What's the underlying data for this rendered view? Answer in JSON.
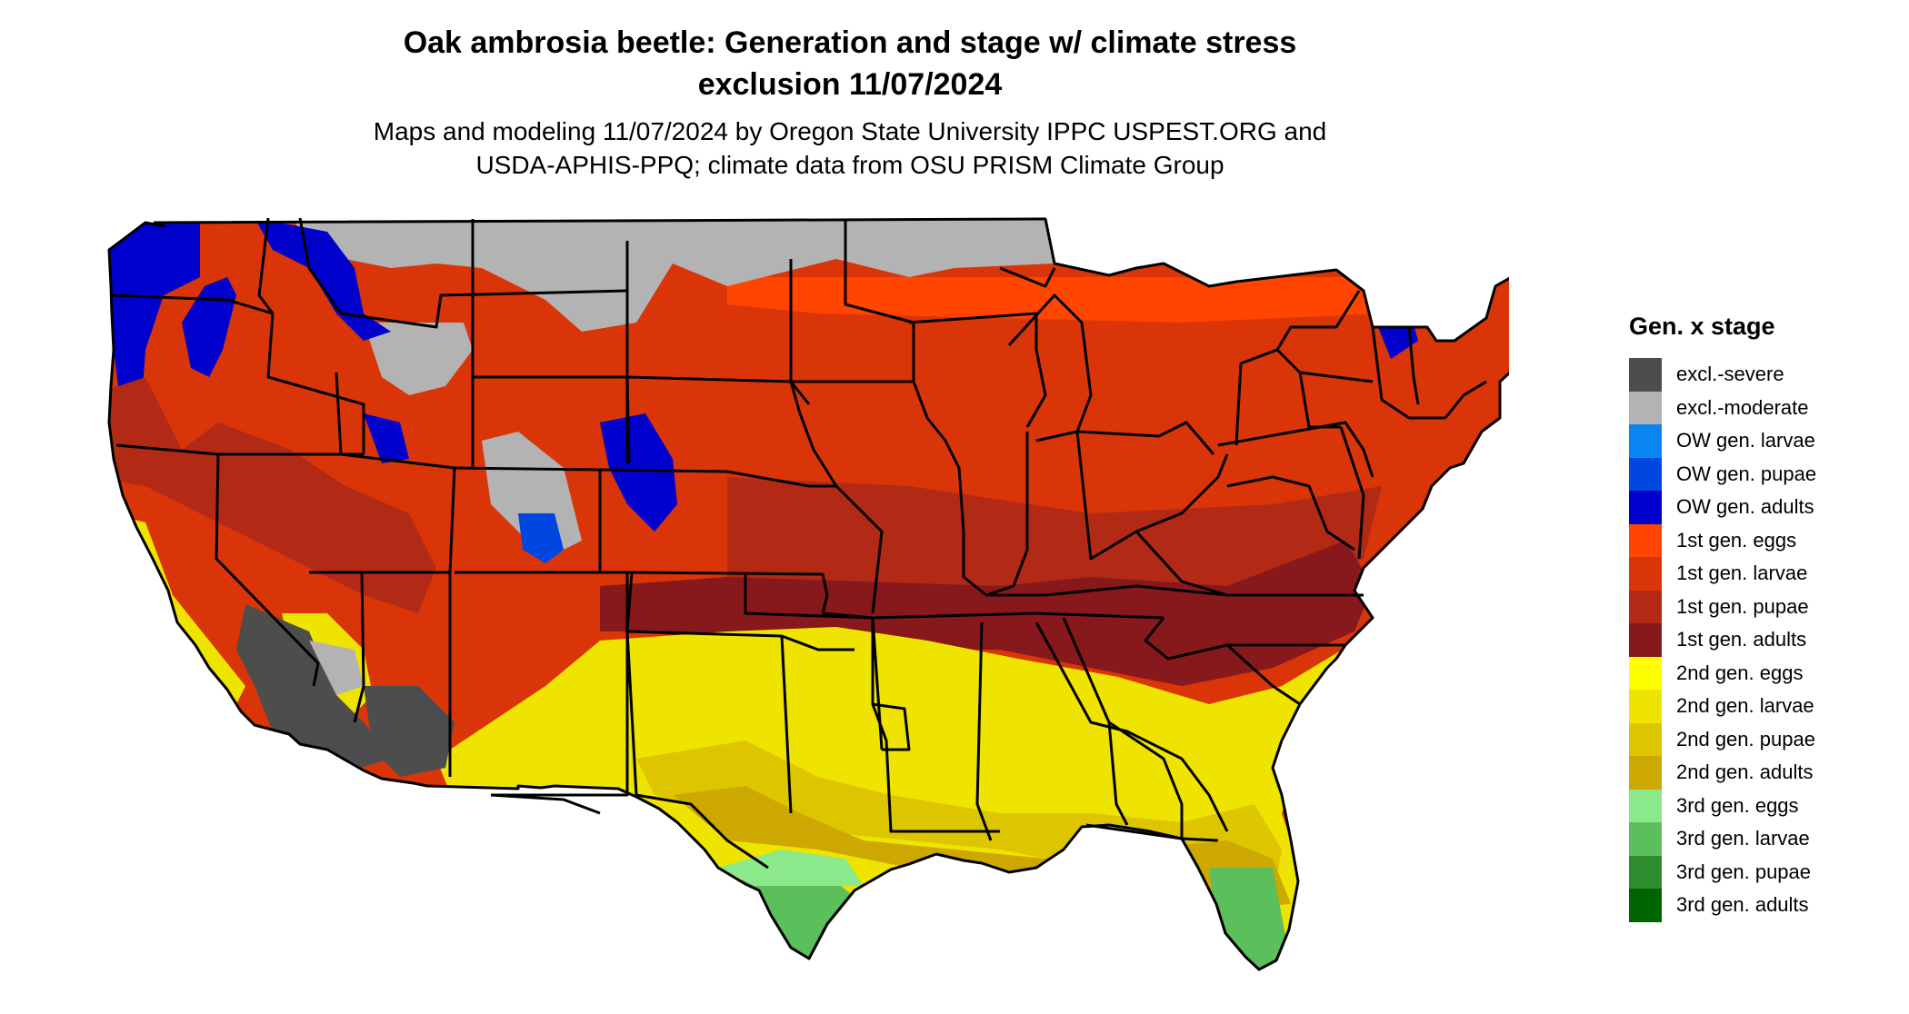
{
  "title": {
    "line1": "Oak ambrosia beetle: Generation and stage w/ climate stress",
    "line2": "exclusion 11/07/2024"
  },
  "subtitle": {
    "line1": "Maps and modeling 11/07/2024 by Oregon State University IPPC USPEST.ORG and",
    "line2": "USDA-APHIS-PPQ; climate data from OSU PRISM Climate Group"
  },
  "legend": {
    "title": "Gen. x stage",
    "items": [
      {
        "label": "excl.-severe",
        "color": "#4d4d4d"
      },
      {
        "label": "excl.-moderate",
        "color": "#b3b3b3"
      },
      {
        "label": "OW gen. larvae",
        "color": "#0a85f0"
      },
      {
        "label": "OW gen. pupae",
        "color": "#0047e0"
      },
      {
        "label": "OW gen. adults",
        "color": "#0000cc"
      },
      {
        "label": "1st gen. eggs",
        "color": "#ff4500"
      },
      {
        "label": "1st gen. larvae",
        "color": "#da3508"
      },
      {
        "label": "1st gen. pupae",
        "color": "#b22a16"
      },
      {
        "label": "1st gen. adults",
        "color": "#87181c"
      },
      {
        "label": "2nd gen. eggs",
        "color": "#ffff00"
      },
      {
        "label": "2nd gen. larvae",
        "color": "#eee400"
      },
      {
        "label": "2nd gen. pupae",
        "color": "#ddc600"
      },
      {
        "label": "2nd gen. adults",
        "color": "#cca800"
      },
      {
        "label": "3rd gen. eggs",
        "color": "#8be98b"
      },
      {
        "label": "3rd gen. larvae",
        "color": "#5bbf5b"
      },
      {
        "label": "3rd gen. pupae",
        "color": "#2e8b2e"
      },
      {
        "label": "3rd gen. adults",
        "color": "#006400"
      }
    ]
  }
}
